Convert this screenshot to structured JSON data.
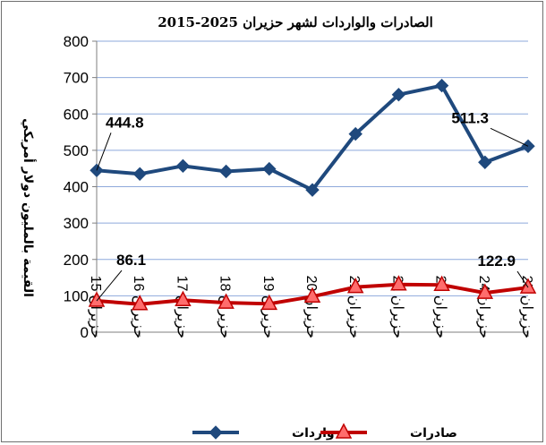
{
  "chart_data": {
    "type": "line",
    "title": "الصادرات والواردات لشهر حزيران 2025-2015",
    "ylabel": "القيمة بالمليون دولار أمريكي",
    "xlabel": "",
    "ylim": [
      0,
      800
    ],
    "yticks": [
      "0",
      "100",
      "200",
      "300",
      "400",
      "500",
      "600",
      "700",
      "800"
    ],
    "grid": true,
    "legend_position": "bottom",
    "categories": [
      "حزيران 15",
      "حزيران 16",
      "حزيران 17",
      "حزيران 18",
      "حزيران 19",
      "حزيران 20",
      "حزيران 21",
      "حزيران 22",
      "حزيران 23",
      "حزيران 24",
      "حزيران 25"
    ],
    "series": [
      {
        "name": "واردات",
        "color": "#1F497D",
        "marker": "diamond",
        "values": [
          444.8,
          435,
          457,
          442,
          449,
          391,
          545,
          653,
          678,
          467,
          511.3
        ],
        "data_labels": [
          {
            "index": 0,
            "text": "444.8"
          },
          {
            "index": 10,
            "text": "511.3"
          }
        ]
      },
      {
        "name": "صادرات",
        "color": "#C00000",
        "marker": "triangle",
        "values": [
          86.1,
          77,
          88,
          81,
          78,
          98,
          124,
          131,
          130,
          108,
          122.9
        ],
        "data_labels": [
          {
            "index": 0,
            "text": "86.1"
          },
          {
            "index": 10,
            "text": "122.9"
          }
        ]
      }
    ]
  }
}
